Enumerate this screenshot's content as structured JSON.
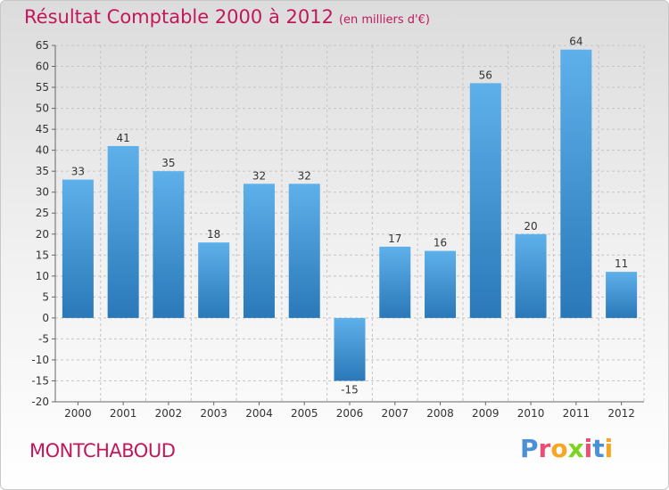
{
  "header": {
    "title": "Résultat Comptable 2000 à 2012",
    "subtitle": "(en milliers d'€)"
  },
  "footer": {
    "city": "MONTCHABOUD",
    "logo_letters": [
      "P",
      "r",
      "o",
      "x",
      "i",
      "t",
      "i"
    ],
    "logo_colors": [
      "#4a90d9",
      "#e94e77",
      "#f5a623",
      "#7ed321",
      "#e94e77",
      "#4a90d9",
      "#f5a623"
    ]
  },
  "colors": {
    "bar_top": "#5eb0ea",
    "bar_bottom": "#2a78b8",
    "grid": "#c4c4c4",
    "axis": "#666666"
  },
  "chart_data": {
    "type": "bar",
    "categories": [
      "2000",
      "2001",
      "2002",
      "2003",
      "2004",
      "2005",
      "2006",
      "2007",
      "2008",
      "2009",
      "2010",
      "2011",
      "2012"
    ],
    "values": [
      33,
      41,
      35,
      18,
      32,
      32,
      -15,
      17,
      16,
      56,
      20,
      64,
      11
    ],
    "ylim": [
      -20,
      65
    ],
    "ytick_step": 5,
    "grid": true,
    "data_labels": true
  }
}
